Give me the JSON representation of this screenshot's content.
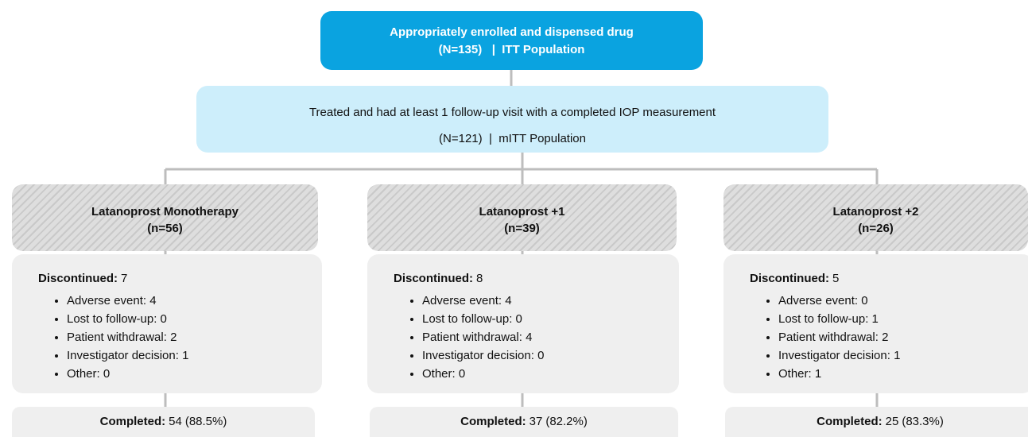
{
  "top": {
    "line1": "Appropriately enrolled and dispensed drug",
    "line2": "(N=135)   |  ITT Population"
  },
  "mitt": {
    "line1": "Treated and had at least 1 follow-up visit with a completed IOP measurement",
    "line2": "(N=121)  |  mITT Population"
  },
  "arms": [
    {
      "name": "Latanoprost Monotherapy",
      "n": "(n=56)",
      "discontinued_label": "Discontinued:",
      "discontinued": 7,
      "reasons": [
        "Adverse event: 4",
        "Lost to follow-up: 0",
        "Patient withdrawal: 2",
        "Investigator decision: 1",
        "Other: 0"
      ],
      "completed_label": "Completed:",
      "completed": 54,
      "completed_pct": "(88.5%)"
    },
    {
      "name": "Latanoprost +1",
      "n": "(n=39)",
      "discontinued_label": "Discontinued:",
      "discontinued": 8,
      "reasons": [
        "Adverse event: 4",
        "Lost to follow-up: 0",
        "Patient withdrawal: 4",
        "Investigator decision: 0",
        "Other: 0"
      ],
      "completed_label": "Completed:",
      "completed": 37,
      "completed_pct": "(82.2%)"
    },
    {
      "name": "Latanoprost +2",
      "n": "(n=26)",
      "discontinued_label": "Discontinued:",
      "discontinued": 5,
      "reasons": [
        "Adverse event: 0",
        "Lost to follow-up: 1",
        "Patient withdrawal: 2",
        "Investigator decision: 1",
        "Other: 1"
      ],
      "completed_label": "Completed:",
      "completed": 25,
      "completed_pct": "(83.3%)"
    }
  ]
}
